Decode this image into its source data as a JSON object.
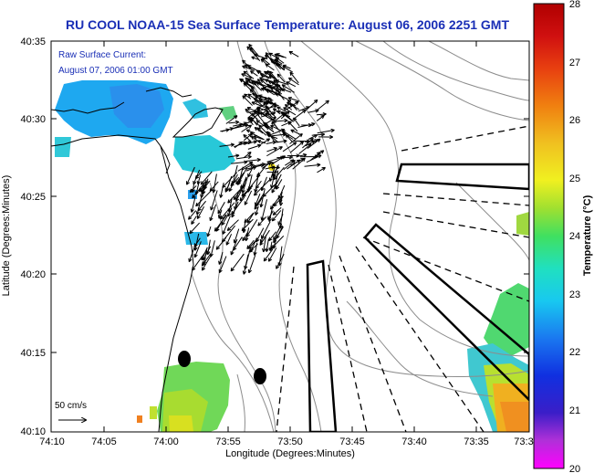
{
  "title": "RU COOL  NOAA-15  Sea Surface Temperature:  August 06, 2006 2251 GMT",
  "current_label": {
    "line1": "Raw Surface Current:",
    "line2": "August 07, 2006 01:00 GMT"
  },
  "scale_arrow_label": "50 cm/s",
  "colors": {
    "title": "#1a2fb6",
    "label": "#1a2fb6",
    "contour": "#8c8c8c",
    "coast": "#000000"
  },
  "chart_data": {
    "type": "heatmap",
    "title": "RU COOL  NOAA-15  Sea Surface Temperature:  August 06, 2006 2251 GMT",
    "xlabel": "Longitude (Degrees:Minutes)",
    "ylabel": "Latitude (Degrees:Minutes)",
    "x_ticks": [
      "74:10",
      "74:05",
      "74:00",
      "73:55",
      "73:50",
      "73:45",
      "73:40",
      "73:35",
      "73:3"
    ],
    "y_ticks": [
      "40:35",
      "40:30",
      "40:25",
      "40:20",
      "40:15",
      "40:10"
    ],
    "colorbar": {
      "label": "Temperature (°C)",
      "ticks": [
        "28",
        "27",
        "26",
        "25",
        "24",
        "23",
        "22",
        "21",
        "20"
      ],
      "range": [
        20,
        28
      ]
    },
    "grid": false
  }
}
